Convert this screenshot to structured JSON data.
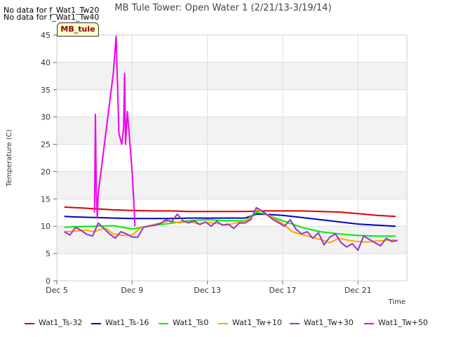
{
  "header": {
    "nodata_lines": [
      "No data for f_Wat1_Tw20",
      "No data for f_Wat1_Tw40"
    ],
    "site_badge": "MB_tule"
  },
  "colors": {
    "Wat1_Ts-32": "#dd0000",
    "Wat1_Ts-16": "#0000cc",
    "Wat1_Ts0": "#00ee00",
    "Wat1_Tw+10": "#ffa500",
    "Wat1_Tw+30": "#9933cc",
    "Wat1_Tw+50": "#ee00ee"
  },
  "chart_data": {
    "type": "line",
    "title": "MB Tule Tower: Open Water 1 (2/21/13-3/19/14)",
    "xlabel": "Time",
    "ylabel": "Temperature (C)",
    "xlim": [
      5,
      23.6
    ],
    "ylim": [
      0,
      45
    ],
    "x_ticks": [
      5,
      9,
      13,
      17,
      21
    ],
    "x_tick_labels": [
      "Dec 5",
      "Dec 9",
      "Dec 13",
      "Dec 17",
      "Dec 21"
    ],
    "y_ticks": [
      0,
      5,
      10,
      15,
      20,
      25,
      30,
      35,
      40,
      45
    ],
    "grid": true,
    "legend_position": "bottom",
    "series": [
      {
        "name": "Wat1_Ts-32",
        "x": [
          5.4,
          6,
          7,
          8,
          9,
          10,
          11,
          12,
          13,
          14,
          15,
          16,
          17,
          18,
          19,
          20,
          21,
          22,
          23
        ],
        "y": [
          13.5,
          13.4,
          13.2,
          13.0,
          12.9,
          12.8,
          12.8,
          12.7,
          12.7,
          12.7,
          12.7,
          12.8,
          12.8,
          12.8,
          12.7,
          12.6,
          12.3,
          12.0,
          11.8
        ]
      },
      {
        "name": "Wat1_Ts-16",
        "x": [
          5.4,
          6,
          7,
          8,
          9,
          10,
          11,
          12,
          13,
          14,
          15,
          15.6,
          16,
          17,
          18,
          19,
          20,
          21,
          22,
          23
        ],
        "y": [
          11.8,
          11.7,
          11.6,
          11.5,
          11.4,
          11.4,
          11.4,
          11.5,
          11.5,
          11.5,
          11.5,
          12.2,
          12.2,
          12.0,
          11.6,
          11.2,
          10.8,
          10.4,
          10.2,
          10.0
        ]
      },
      {
        "name": "Wat1_Ts0",
        "x": [
          5.4,
          6,
          7,
          8,
          9,
          10,
          11,
          12,
          13,
          14,
          15,
          15.6,
          16,
          17,
          18,
          19,
          20,
          21,
          22,
          23
        ],
        "y": [
          9.8,
          9.9,
          10.0,
          10.1,
          9.5,
          10.1,
          10.5,
          11.0,
          11.2,
          11.0,
          11.0,
          12.5,
          12.3,
          11.0,
          9.8,
          9.0,
          8.6,
          8.3,
          8.2,
          8.2
        ]
      },
      {
        "name": "Wat1_Tw+10",
        "x": [
          5.4,
          6,
          6.5,
          7,
          7.3,
          7.6,
          8,
          8.5,
          9,
          9.5,
          10,
          10.5,
          11,
          11.5,
          12,
          12.5,
          13,
          13.5,
          14,
          14.5,
          15,
          15.3,
          15.6,
          16,
          16.5,
          17,
          17.5,
          18,
          18.5,
          19,
          19.5,
          20,
          20.5,
          21,
          21.5,
          22,
          22.5,
          23
        ],
        "y": [
          9.0,
          9.1,
          9.3,
          9.0,
          9.4,
          9.6,
          8.6,
          8.3,
          8.4,
          9.8,
          10.2,
          10.6,
          11.0,
          10.6,
          10.9,
          10.4,
          10.7,
          10.5,
          10.2,
          10.6,
          10.9,
          11.5,
          13.0,
          12.6,
          11.5,
          10.5,
          9.0,
          8.5,
          8.0,
          7.6,
          7.0,
          7.8,
          7.4,
          7.2,
          7.1,
          7.3,
          7.4,
          7.5
        ]
      },
      {
        "name": "Wat1_Tw+30",
        "x": [
          5.4,
          5.7,
          6.0,
          6.3,
          6.6,
          6.9,
          7.2,
          7.5,
          7.8,
          8.1,
          8.4,
          8.7,
          9.0,
          9.3,
          9.6,
          9.9,
          10.2,
          10.5,
          10.8,
          11.1,
          11.4,
          11.7,
          12.0,
          12.3,
          12.6,
          12.9,
          13.2,
          13.5,
          13.8,
          14.1,
          14.4,
          14.7,
          15.0,
          15.3,
          15.6,
          15.9,
          16.2,
          16.5,
          16.8,
          17.1,
          17.4,
          17.7,
          18.0,
          18.3,
          18.6,
          18.9,
          19.2,
          19.5,
          19.8,
          20.1,
          20.4,
          20.7,
          21.0,
          21.3,
          21.6,
          21.9,
          22.2,
          22.5,
          22.8,
          23.1
        ],
        "y": [
          9.0,
          8.4,
          9.8,
          9.2,
          8.5,
          8.2,
          10.6,
          9.6,
          8.6,
          7.8,
          9.0,
          8.6,
          8.0,
          8.0,
          9.8,
          10.0,
          10.2,
          10.5,
          11.2,
          10.8,
          12.2,
          11.0,
          10.6,
          11.0,
          10.3,
          10.8,
          10.0,
          10.9,
          10.2,
          10.4,
          9.6,
          10.6,
          10.6,
          11.2,
          13.4,
          12.8,
          12.0,
          11.2,
          10.6,
          10.0,
          11.2,
          9.5,
          8.6,
          9.0,
          7.8,
          8.8,
          6.6,
          8.0,
          8.6,
          7.0,
          6.2,
          6.8,
          5.6,
          8.2,
          7.6,
          7.0,
          6.4,
          7.8,
          7.2,
          7.4
        ]
      },
      {
        "name": "Wat1_Tw+50",
        "x": [
          7.0,
          7.05,
          7.1,
          7.15,
          7.2,
          8.0,
          8.15,
          8.3,
          8.45,
          8.55,
          8.6,
          8.65,
          8.75,
          9.0,
          9.1,
          9.15
        ],
        "y": [
          12.5,
          30.5,
          16.0,
          11.5,
          16.0,
          38.0,
          44.8,
          27.0,
          25.0,
          28.0,
          38.0,
          25.0,
          31.0,
          20.0,
          14.0,
          10.0
        ]
      }
    ]
  }
}
